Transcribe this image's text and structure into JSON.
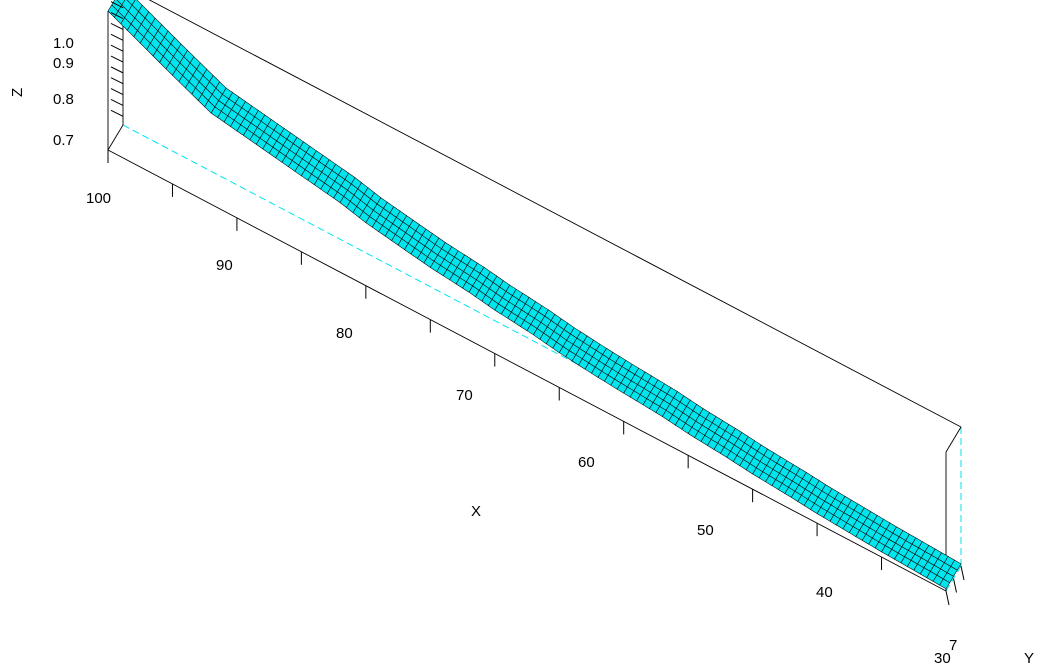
{
  "chart_data": {
    "type": "surface",
    "xlabel": "X",
    "ylabel": "Y",
    "zlabel": "Z",
    "x_ticks": [
      40,
      50,
      60,
      70,
      80,
      90,
      100
    ],
    "x_tick_labels": [
      "40",
      "50",
      "60",
      "70",
      "80",
      "90",
      "100"
    ],
    "y_tick_labels": [
      "7",
      "30"
    ],
    "z_ticks": [
      0.7,
      0.8,
      0.9,
      1.0
    ],
    "z_tick_labels": [
      "0.7",
      "0.8",
      "0.9",
      "1.0"
    ],
    "xlim": [
      35,
      100
    ],
    "zlim": [
      0.68,
      1.0
    ],
    "surface": {
      "x": [
        100,
        95,
        92,
        90,
        88,
        85,
        82,
        80,
        77,
        75,
        72,
        70,
        67,
        65,
        62,
        60,
        57,
        55,
        52,
        50,
        47,
        45,
        42,
        40,
        37,
        35
      ],
      "z": [
        1.0,
        0.93,
        0.89,
        0.88,
        0.87,
        0.855,
        0.84,
        0.825,
        0.81,
        0.8,
        0.79,
        0.78,
        0.77,
        0.76,
        0.75,
        0.745,
        0.738,
        0.73,
        0.722,
        0.715,
        0.708,
        0.702,
        0.696,
        0.692,
        0.688,
        0.685
      ]
    },
    "surface_color": "#00e5ee",
    "mesh_color": "#000000",
    "box_color": "#000000",
    "hidden_edge_color": "#00e5ee"
  }
}
